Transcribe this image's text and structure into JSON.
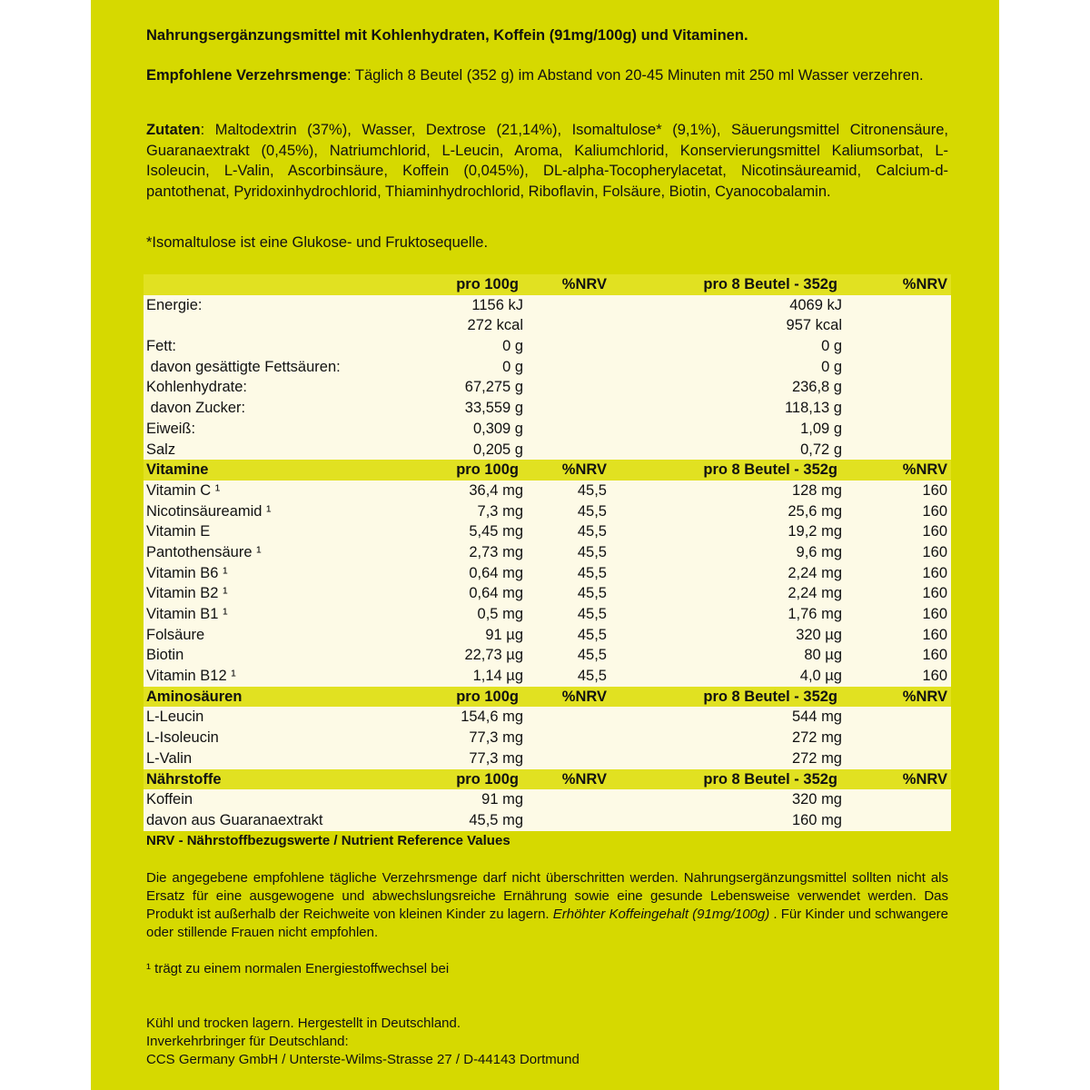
{
  "intro": "Nahrungsergänzungsmittel mit Kohlenhydraten, Koffein (91mg/100g) und Vitaminen.",
  "dosage": {
    "label": "Empfohlene Verzehrsmenge",
    "text": ": Täglich 8 Beutel (352 g) im Abstand von 20-45 Minuten mit 250 ml Wasser verzehren."
  },
  "ingredients": {
    "label": "Zutaten",
    "text": ": Maltodextrin (37%), Wasser, Dextrose (21,14%), Isomaltulose* (9,1%), Säuerungsmittel Citronensäure, Guaranaextrakt (0,45%), Natriumchlorid, L-Leucin, Aroma, Kaliumchlorid, Konservierungsmittel Kaliumsorbat, L-Isoleucin, L-Valin, Ascorbinsäure, Koffein (0,045%), DL-alpha-Tocopherylacetat, Nicotinsäureamid, Calcium-d-pantothenat, Pyridoxinhydrochlorid, Thiaminhydrochlorid, Riboflavin, Folsäure, Biotin, Cyanocobalamin."
  },
  "isomaltulose_note": "*Isomaltulose ist eine Glukose- und Fruktosequelle.",
  "table": [
    {
      "head": true,
      "cells": [
        "",
        "pro 100g",
        "%NRV",
        "pro 8 Beutel - 352g",
        "%NRV"
      ]
    },
    {
      "cells": [
        "Energie:",
        "1156 kJ",
        "",
        "4069 kJ",
        ""
      ]
    },
    {
      "cells": [
        "",
        "272 kcal",
        "",
        "957 kcal",
        ""
      ]
    },
    {
      "cells": [
        "Fett:",
        "0 g",
        "",
        "0 g",
        ""
      ]
    },
    {
      "cells": [
        " davon gesättigte Fettsäuren:",
        "0 g",
        "",
        "0 g",
        ""
      ]
    },
    {
      "cells": [
        "Kohlenhydrate:",
        "67,275 g",
        "",
        "236,8 g",
        ""
      ]
    },
    {
      "cells": [
        " davon Zucker:",
        "33,559 g",
        "",
        "118,13 g",
        ""
      ]
    },
    {
      "cells": [
        "Eiweiß:",
        "0,309 g",
        "",
        "1,09 g",
        ""
      ]
    },
    {
      "cells": [
        "Salz",
        "0,205 g",
        "",
        "0,72 g",
        ""
      ]
    },
    {
      "head": true,
      "cells": [
        "Vitamine",
        "pro 100g",
        "%NRV",
        "pro 8 Beutel - 352g",
        "%NRV"
      ]
    },
    {
      "cells": [
        "Vitamin C ¹",
        "36,4 mg",
        "45,5",
        "128 mg",
        "160"
      ]
    },
    {
      "cells": [
        "Nicotinsäureamid ¹",
        "7,3 mg",
        "45,5",
        "25,6 mg",
        "160"
      ]
    },
    {
      "cells": [
        "Vitamin E",
        "5,45 mg",
        "45,5",
        "19,2 mg",
        "160"
      ]
    },
    {
      "cells": [
        "Pantothensäure ¹",
        "2,73 mg",
        "45,5",
        "9,6 mg",
        "160"
      ]
    },
    {
      "cells": [
        "Vitamin B6 ¹",
        "0,64 mg",
        "45,5",
        "2,24 mg",
        "160"
      ]
    },
    {
      "cells": [
        "Vitamin B2 ¹",
        "0,64 mg",
        "45,5",
        "2,24 mg",
        "160"
      ]
    },
    {
      "cells": [
        "Vitamin B1 ¹",
        "0,5 mg",
        "45,5",
        "1,76 mg",
        "160"
      ]
    },
    {
      "cells": [
        "Folsäure",
        "91 µg",
        "45,5",
        "320 µg",
        "160"
      ]
    },
    {
      "cells": [
        "Biotin",
        "22,73 µg",
        "45,5",
        "80 µg",
        "160"
      ]
    },
    {
      "cells": [
        "Vitamin B12 ¹",
        "1,14 µg",
        "45,5",
        "4,0 µg",
        "160"
      ]
    },
    {
      "head": true,
      "cells": [
        "Aminosäuren",
        "pro 100g",
        "%NRV",
        "pro 8 Beutel - 352g",
        "%NRV"
      ]
    },
    {
      "cells": [
        "L-Leucin",
        "154,6 mg",
        "",
        "544 mg",
        ""
      ]
    },
    {
      "cells": [
        "L-Isoleucin",
        "77,3 mg",
        "",
        "272 mg",
        ""
      ]
    },
    {
      "cells": [
        "L-Valin",
        "77,3 mg",
        "",
        "272 mg",
        ""
      ]
    },
    {
      "head": true,
      "cells": [
        "Nährstoffe",
        "pro 100g",
        "%NRV",
        "pro 8 Beutel - 352g",
        "%NRV"
      ]
    },
    {
      "cells": [
        "Koffein",
        "91 mg",
        "",
        "320 mg",
        ""
      ]
    },
    {
      "cells": [
        "davon aus Guaranaextrakt",
        "45,5 mg",
        "",
        "160 mg",
        ""
      ]
    }
  ],
  "nrv_note": "NRV - Nährstoffbezugswerte / Nutrient Reference Values",
  "warning": {
    "text": "Die angegebene empfohlene tägliche Verzehrsmenge darf nicht überschritten werden. Nahrungsergänzungsmittel sollten nicht als Ersatz für eine ausgewogene und abwechslungsreiche Ernährung sowie eine gesunde Lebensweise verwendet werden. Das Produkt ist außerhalb der Reichweite von kleinen Kinder zu lagern. ",
    "italic": "Erhöhter Koffeingehalt (91mg/100g)",
    "tail": " . Für Kinder und schwangere oder stillende Frauen nicht empfohlen."
  },
  "footnote": "¹ trägt zu einem normalen Energiestoffwechsel bei",
  "storage": "Kühl und trocken lagern. Hergestellt in Deutschland.",
  "distributor_label": "Inverkehrbringer für Deutschland:",
  "distributor": "CCS Germany GmbH / Unterste-Wilms-Strasse 27 / D-44143 Dortmund"
}
